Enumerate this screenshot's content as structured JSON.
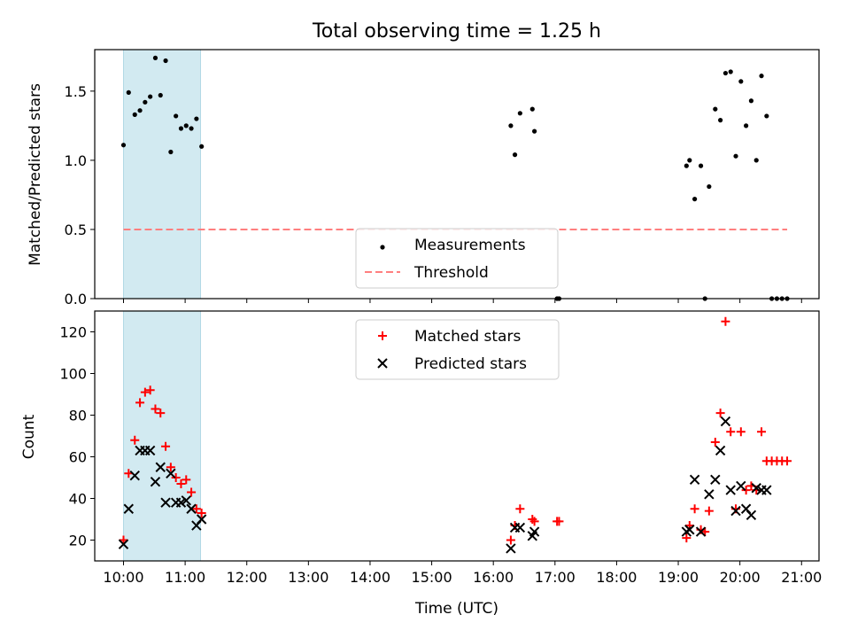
{
  "chart_data": [
    {
      "type": "scatter",
      "title": "Total observing time = 1.25 h",
      "xlabel": "",
      "ylabel": "Matched/Predicted stars",
      "xlim": [
        "09:32",
        "21:17"
      ],
      "ylim": [
        0,
        1.8
      ],
      "yticks": [
        0.0,
        0.5,
        1.0,
        1.5
      ],
      "ytick_labels": [
        "0.0",
        "0.5",
        "1.0",
        "1.5"
      ],
      "highlight_span": {
        "from": "10:00",
        "to": "11:15",
        "color": "#add8e6"
      },
      "legend": {
        "position": "bottom-center"
      },
      "series": [
        {
          "name": "Measurements",
          "marker": "dot",
          "color": "#000000",
          "points": [
            [
              "10:00",
              1.11
            ],
            [
              "10:05",
              1.49
            ],
            [
              "10:11",
              1.33
            ],
            [
              "10:16",
              1.36
            ],
            [
              "10:21",
              1.42
            ],
            [
              "10:26",
              1.46
            ],
            [
              "10:31",
              1.74
            ],
            [
              "10:36",
              1.47
            ],
            [
              "10:41",
              1.72
            ],
            [
              "10:46",
              1.06
            ],
            [
              "10:51",
              1.32
            ],
            [
              "10:56",
              1.23
            ],
            [
              "11:01",
              1.25
            ],
            [
              "11:06",
              1.23
            ],
            [
              "11:11",
              1.3
            ],
            [
              "11:16",
              1.1
            ],
            [
              "16:17",
              1.25
            ],
            [
              "16:21",
              1.04
            ],
            [
              "16:26",
              1.34
            ],
            [
              "16:38",
              1.37
            ],
            [
              "16:40",
              1.21
            ],
            [
              "17:02",
              0.0
            ],
            [
              "17:04",
              0.0
            ],
            [
              "19:08",
              0.96
            ],
            [
              "19:11",
              1.0
            ],
            [
              "19:16",
              0.72
            ],
            [
              "19:22",
              0.96
            ],
            [
              "19:26",
              0.0
            ],
            [
              "19:30",
              0.81
            ],
            [
              "19:36",
              1.37
            ],
            [
              "19:41",
              1.29
            ],
            [
              "19:46",
              1.63
            ],
            [
              "19:51",
              1.64
            ],
            [
              "19:56",
              1.03
            ],
            [
              "20:01",
              1.57
            ],
            [
              "20:06",
              1.25
            ],
            [
              "20:11",
              1.43
            ],
            [
              "20:16",
              1.0
            ],
            [
              "20:21",
              1.61
            ],
            [
              "20:26",
              1.32
            ],
            [
              "20:31",
              0.0
            ],
            [
              "20:36",
              0.0
            ],
            [
              "20:41",
              0.0
            ],
            [
              "20:46",
              0.0
            ]
          ]
        },
        {
          "name": "Threshold",
          "type": "line",
          "style": "dashed",
          "color": "#ff7f7f",
          "points": [
            [
              "10:00",
              0.5
            ],
            [
              "20:46",
              0.5
            ]
          ]
        }
      ]
    },
    {
      "type": "scatter",
      "title": "",
      "xlabel": "Time (UTC)",
      "ylabel": "Count",
      "xlim": [
        "09:32",
        "21:17"
      ],
      "ylim": [
        10,
        130
      ],
      "yticks": [
        20,
        40,
        60,
        80,
        100,
        120
      ],
      "ytick_labels": [
        "20",
        "40",
        "60",
        "80",
        "100",
        "120"
      ],
      "xticks": [
        "10:00",
        "11:00",
        "12:00",
        "13:00",
        "14:00",
        "15:00",
        "16:00",
        "17:00",
        "18:00",
        "19:00",
        "20:00",
        "21:00"
      ],
      "highlight_span": {
        "from": "10:00",
        "to": "11:15",
        "color": "#add8e6"
      },
      "legend": {
        "position": "top-center"
      },
      "series": [
        {
          "name": "Matched stars",
          "marker": "plus",
          "color": "#ff0000",
          "points": [
            [
              "10:00",
              20
            ],
            [
              "10:05",
              52
            ],
            [
              "10:11",
              68
            ],
            [
              "10:16",
              86
            ],
            [
              "10:21",
              91
            ],
            [
              "10:26",
              92
            ],
            [
              "10:31",
              83
            ],
            [
              "10:36",
              81
            ],
            [
              "10:41",
              65
            ],
            [
              "10:46",
              55
            ],
            [
              "10:51",
              50
            ],
            [
              "10:56",
              47
            ],
            [
              "11:01",
              49
            ],
            [
              "11:06",
              43
            ],
            [
              "11:11",
              35
            ],
            [
              "11:16",
              33
            ],
            [
              "16:17",
              20
            ],
            [
              "16:21",
              27
            ],
            [
              "16:26",
              35
            ],
            [
              "16:38",
              30
            ],
            [
              "16:40",
              29
            ],
            [
              "17:02",
              29
            ],
            [
              "17:04",
              29
            ],
            [
              "19:08",
              21
            ],
            [
              "19:11",
              27
            ],
            [
              "19:16",
              35
            ],
            [
              "19:22",
              25
            ],
            [
              "19:26",
              24
            ],
            [
              "19:30",
              34
            ],
            [
              "19:36",
              67
            ],
            [
              "19:41",
              81
            ],
            [
              "19:46",
              125
            ],
            [
              "19:51",
              72
            ],
            [
              "19:56",
              35
            ],
            [
              "20:01",
              72
            ],
            [
              "20:06",
              44
            ],
            [
              "20:11",
              46
            ],
            [
              "20:16",
              44
            ],
            [
              "20:21",
              72
            ],
            [
              "20:26",
              58
            ],
            [
              "20:31",
              58
            ],
            [
              "20:36",
              58
            ],
            [
              "20:41",
              58
            ],
            [
              "20:46",
              58
            ]
          ]
        },
        {
          "name": "Predicted stars",
          "marker": "x",
          "color": "#000000",
          "points": [
            [
              "10:00",
              18
            ],
            [
              "10:05",
              35
            ],
            [
              "10:11",
              51
            ],
            [
              "10:16",
              63
            ],
            [
              "10:21",
              63
            ],
            [
              "10:26",
              63
            ],
            [
              "10:31",
              48
            ],
            [
              "10:36",
              55
            ],
            [
              "10:41",
              38
            ],
            [
              "10:46",
              52
            ],
            [
              "10:51",
              38
            ],
            [
              "10:56",
              38
            ],
            [
              "11:01",
              39
            ],
            [
              "11:06",
              35
            ],
            [
              "11:11",
              27
            ],
            [
              "11:16",
              30
            ],
            [
              "16:17",
              16
            ],
            [
              "16:21",
              26
            ],
            [
              "16:26",
              26
            ],
            [
              "16:38",
              22
            ],
            [
              "16:40",
              24
            ],
            [
              "19:08",
              24
            ],
            [
              "19:11",
              25
            ],
            [
              "19:16",
              49
            ],
            [
              "19:22",
              24
            ],
            [
              "19:30",
              42
            ],
            [
              "19:36",
              49
            ],
            [
              "19:41",
              63
            ],
            [
              "19:46",
              77
            ],
            [
              "19:51",
              44
            ],
            [
              "19:56",
              34
            ],
            [
              "20:01",
              46
            ],
            [
              "20:06",
              35
            ],
            [
              "20:11",
              32
            ],
            [
              "20:16",
              45
            ],
            [
              "20:21",
              44
            ],
            [
              "20:26",
              44
            ]
          ]
        }
      ]
    }
  ]
}
